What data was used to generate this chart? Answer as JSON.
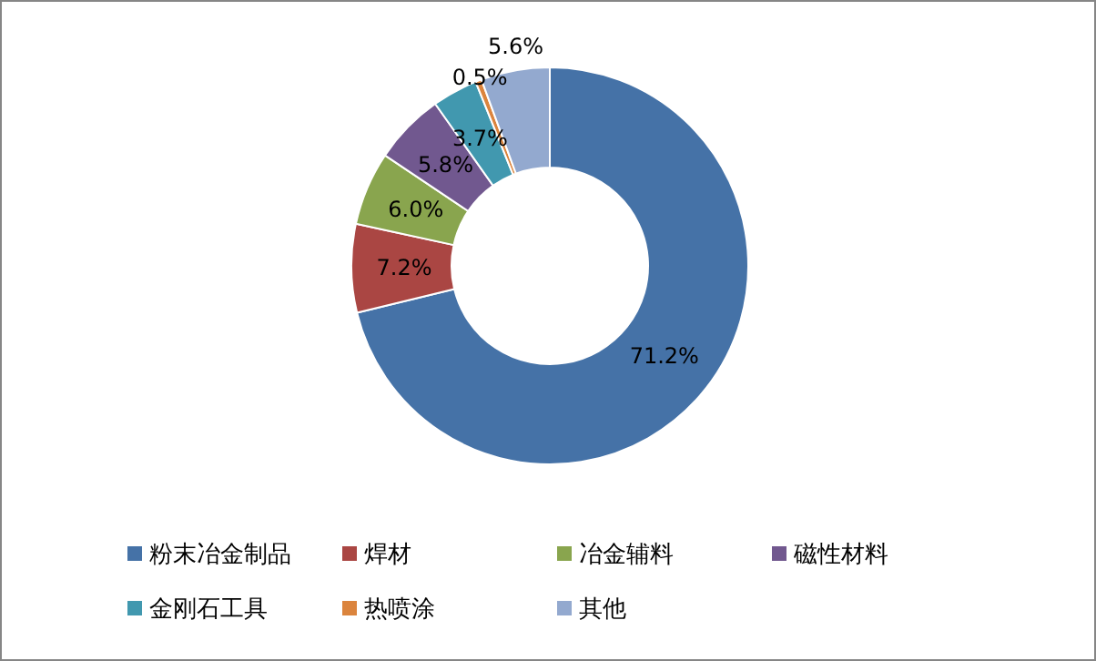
{
  "chart_data": {
    "type": "donut",
    "categories": [
      "粉末冶金制品",
      "焊材",
      "冶金辅料",
      "磁性材料",
      "金刚石工具",
      "热喷涂",
      "其他"
    ],
    "values": [
      71.2,
      7.2,
      6.0,
      5.8,
      3.7,
      0.5,
      5.6
    ],
    "colors": [
      "#4572a7",
      "#aa4643",
      "#89a54e",
      "#71588f",
      "#4198af",
      "#db843d",
      "#93a9cf"
    ],
    "value_labels": [
      "71.2%",
      "7.2%",
      "6.0%",
      "5.8%",
      "3.7%",
      "0.5%",
      "5.6%"
    ],
    "legend": "bottom"
  }
}
